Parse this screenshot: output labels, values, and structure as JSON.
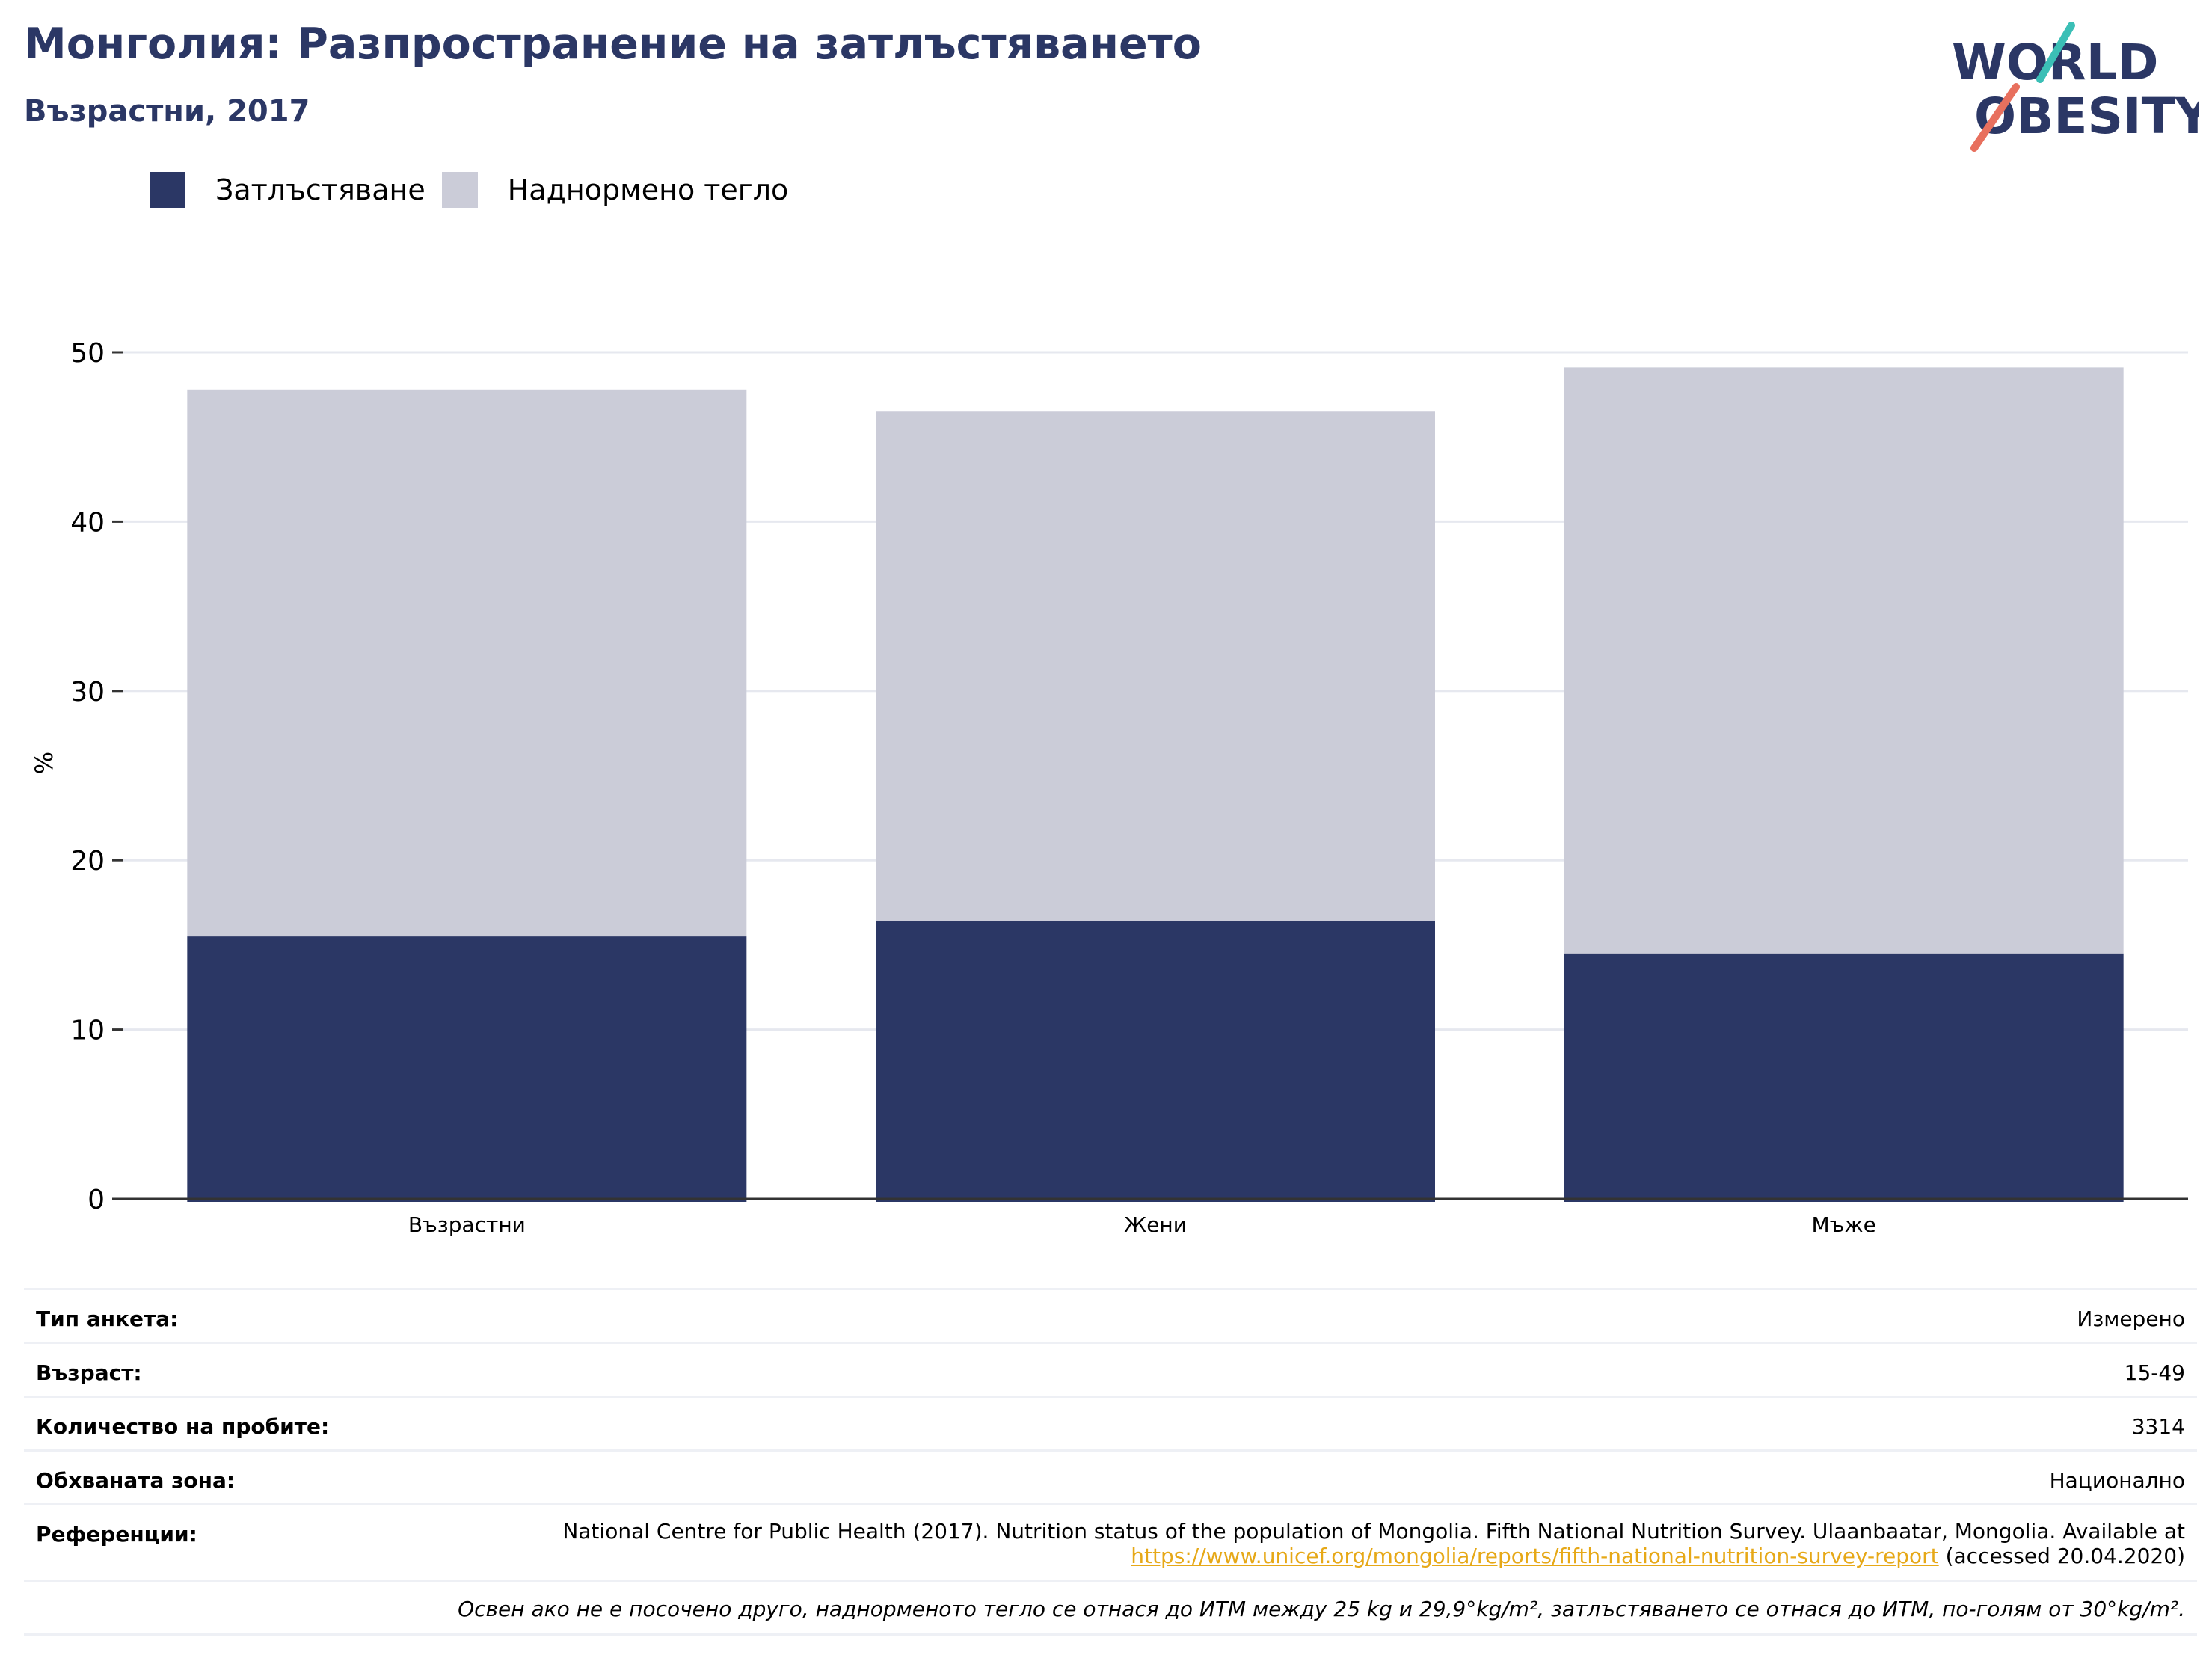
{
  "header": {
    "title": "Монголия: Разпространение на затлъстяването",
    "subtitle": "Възрастни, 2017"
  },
  "logo": {
    "line1": "WORLD",
    "line2": "OBESITY",
    "colors": {
      "text": "#2b3765",
      "teal": "#3bbfb6",
      "coral": "#e8705e"
    }
  },
  "legend": [
    {
      "label": "Затлъстяване",
      "color": "#2b3765"
    },
    {
      "label": "Наднормено тегло",
      "color": "#cbccd8"
    }
  ],
  "chart_data": {
    "type": "bar",
    "stacked": true,
    "categories": [
      "Възрастни",
      "Жени",
      "Мъже"
    ],
    "series": [
      {
        "name": "Затлъстяване",
        "values": [
          15.5,
          16.4,
          14.5
        ],
        "color": "#2b3765"
      },
      {
        "name": "Наднормено тегло",
        "values": [
          32.3,
          30.1,
          34.6
        ],
        "color": "#cbccd8"
      }
    ],
    "ylabel": "%",
    "ylim": [
      0,
      50
    ],
    "yticks": [
      0,
      10,
      20,
      30,
      40,
      50
    ],
    "grid": true,
    "legend_position": "top-left"
  },
  "info": {
    "rows": [
      {
        "label": "Тип анкета:",
        "value": "Измерено"
      },
      {
        "label": "Възраст:",
        "value": "15-49"
      },
      {
        "label": "Количество на пробите:",
        "value": "3314"
      },
      {
        "label": "Обхваната зона:",
        "value": "Национално"
      }
    ],
    "reference": {
      "label": "Референции:",
      "text_before": "National Centre for Public Health (2017). Nutrition status of the population of Mongolia. Fifth National Nutrition Survey. Ulaanbaatar, Mongolia. Available at ",
      "link": "https://www.unicef.org/mongolia/reports/fifth-national-nutrition-survey-report",
      "text_after": " (accessed 20.04.2020)"
    },
    "note": "Освен ако не е посочено друго, наднорменото тегло се отнася до ИТМ между 25 kg и 29,9°kg/m², затлъстяването се отнася до ИТМ, по-голям от 30°kg/m²."
  }
}
